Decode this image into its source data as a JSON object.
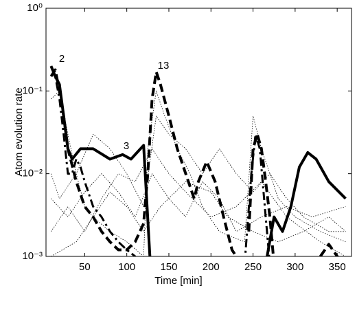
{
  "chart_data": {
    "type": "line",
    "xlabel": "Time [min]",
    "ylabel": "Atom evolution rate",
    "yscale": "log",
    "xlim": [
      4,
      367
    ],
    "ylim": [
      0.001,
      1
    ],
    "xticks": [
      50,
      100,
      150,
      200,
      250,
      300,
      350
    ],
    "yticks": [
      {
        "value": 0.001,
        "label": "10⁻³"
      },
      {
        "value": 0.01,
        "label": "10⁻²"
      },
      {
        "value": 0.1,
        "label": "10⁻¹"
      },
      {
        "value": 1,
        "label": "10⁰"
      }
    ],
    "annotations": [
      "2",
      "13",
      "3"
    ],
    "series": [
      {
        "color": "#000000",
        "style": "dotted",
        "width": 0.8,
        "x": [
          10,
          20,
          30,
          40,
          50,
          60,
          80,
          100,
          120,
          125,
          135,
          145,
          160,
          175,
          190,
          210,
          240,
          250,
          260,
          280,
          300,
          330,
          360
        ],
        "values": [
          0.08,
          0.1,
          0.03,
          0.01,
          0.004,
          0.003,
          0.002,
          0.0015,
          0.001,
          0.02,
          0.1,
          0.05,
          0.02,
          0.01,
          0.004,
          0.002,
          0.0015,
          0.05,
          0.02,
          0.005,
          0.003,
          0.002,
          0.0015
        ]
      },
      {
        "color": "#000000",
        "style": "dotted",
        "width": 0.8,
        "x": [
          10,
          20,
          40,
          60,
          80,
          100,
          120,
          135,
          150,
          170,
          190,
          210,
          230,
          250,
          270,
          290,
          310,
          340,
          360
        ],
        "values": [
          0.01,
          0.005,
          0.01,
          0.03,
          0.02,
          0.01,
          0.004,
          0.05,
          0.03,
          0.02,
          0.01,
          0.02,
          0.01,
          0.006,
          0.01,
          0.005,
          0.003,
          0.002,
          0.002
        ]
      },
      {
        "color": "#000000",
        "style": "dotted",
        "width": 0.8,
        "x": [
          10,
          30,
          50,
          70,
          90,
          110,
          130,
          150,
          170,
          190,
          210,
          230,
          260,
          290,
          320,
          360
        ],
        "values": [
          0.005,
          0.003,
          0.006,
          0.01,
          0.006,
          0.003,
          0.01,
          0.005,
          0.003,
          0.008,
          0.005,
          0.002,
          0.003,
          0.004,
          0.003,
          0.004
        ]
      },
      {
        "color": "#000000",
        "style": "dotted",
        "width": 0.8,
        "x": [
          10,
          30,
          50,
          70,
          90,
          110,
          130,
          150,
          170,
          200,
          230,
          260,
          290,
          330,
          360
        ],
        "values": [
          0.002,
          0.004,
          0.002,
          0.005,
          0.01,
          0.008,
          0.02,
          0.01,
          0.006,
          0.003,
          0.004,
          0.008,
          0.003,
          0.0015,
          0.001
        ]
      },
      {
        "color": "#000000",
        "style": "dotted",
        "width": 0.8,
        "x": [
          10,
          40,
          60,
          80,
          100,
          120,
          140,
          170,
          200,
          220,
          250,
          280,
          310,
          340,
          360
        ],
        "values": [
          0.001,
          0.0015,
          0.003,
          0.006,
          0.004,
          0.002,
          0.004,
          0.008,
          0.006,
          0.003,
          0.002,
          0.0015,
          0.002,
          0.003,
          0.002
        ]
      },
      {
        "color": "#000000",
        "style": "dashdot",
        "width": 3,
        "x": [
          10,
          15,
          20,
          25,
          30,
          35,
          40,
          45,
          50,
          60,
          70,
          80,
          90,
          100,
          110,
          115,
          120,
          240,
          248,
          253,
          258,
          265,
          270
        ],
        "values": [
          0.2,
          0.15,
          0.08,
          0.03,
          0.01,
          0.01,
          0.015,
          0.012,
          0.008,
          0.004,
          0.003,
          0.002,
          0.0015,
          0.0012,
          0.001,
          0.0008,
          null,
          0.0008,
          0.01,
          0.03,
          0.02,
          0.003,
          0.0008
        ]
      },
      {
        "color": "#000000",
        "style": "dashed",
        "width": 4,
        "x": [
          10,
          15,
          20,
          25,
          30,
          40,
          50,
          60,
          70,
          80,
          90,
          100,
          110,
          120,
          125,
          130,
          135,
          140,
          150,
          160,
          170,
          180,
          185,
          195,
          205,
          215,
          225,
          230,
          235,
          240,
          245,
          250,
          255,
          260,
          265,
          270,
          275,
          300,
          330,
          340,
          350,
          360
        ],
        "values": [
          0.15,
          0.18,
          0.1,
          0.05,
          0.02,
          0.008,
          0.004,
          0.003,
          0.002,
          0.0015,
          0.0012,
          0.0012,
          0.0015,
          0.0025,
          0.01,
          0.08,
          0.17,
          0.12,
          0.05,
          0.02,
          0.01,
          0.005,
          0.008,
          0.014,
          0.008,
          0.003,
          0.0012,
          0.001,
          0.0008,
          null,
          0.002,
          0.02,
          0.03,
          0.02,
          0.008,
          0.003,
          0.0008,
          null,
          0.001,
          0.0014,
          0.001,
          0.0008
        ]
      },
      {
        "color": "#000000",
        "style": "solid",
        "width": 4,
        "x": [
          10,
          15,
          20,
          25,
          30,
          35,
          45,
          60,
          80,
          95,
          105,
          120,
          128,
          200,
          265,
          275,
          285,
          295,
          305,
          315,
          325,
          340,
          360
        ],
        "values": [
          0.2,
          0.15,
          0.12,
          0.05,
          0.02,
          0.015,
          0.02,
          0.02,
          0.015,
          0.017,
          0.015,
          0.022,
          0.0008,
          null,
          0.0008,
          0.003,
          0.002,
          0.004,
          0.012,
          0.018,
          0.015,
          0.008,
          0.005
        ]
      }
    ]
  }
}
